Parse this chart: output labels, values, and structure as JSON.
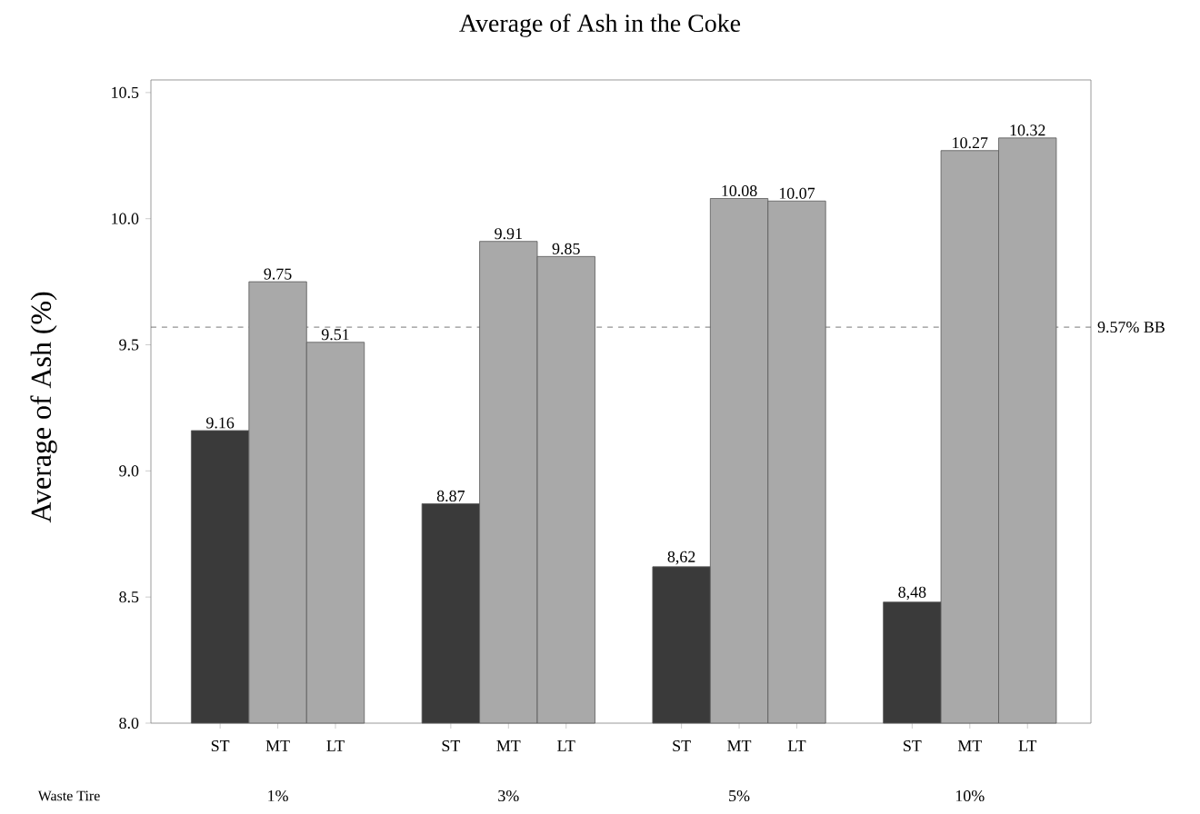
{
  "chart_data": {
    "type": "bar",
    "title": "Average of Ash in the Coke",
    "ylabel": "Average of Ash (%)",
    "categories": [
      "ST",
      "MT",
      "LT",
      null,
      "ST",
      "MT",
      "LT",
      null,
      "ST",
      "MT",
      "LT",
      null,
      "ST",
      "MT",
      "LT"
    ],
    "values": [
      9.16,
      9.75,
      9.51,
      null,
      8.87,
      9.91,
      9.85,
      null,
      8.62,
      10.08,
      10.07,
      null,
      8.48,
      10.27,
      10.32
    ],
    "colors": [
      "#3a3a3a",
      "#a9a9a9",
      "#a9a9a9",
      null,
      "#3a3a3a",
      "#a9a9a9",
      "#a9a9a9",
      null,
      "#3a3a3a",
      "#a9a9a9",
      "#a9a9a9",
      null,
      "#3a3a3a",
      "#a9a9a9",
      "#a9a9a9"
    ],
    "value_labels": [
      "9.16",
      "9.75",
      "9.51",
      null,
      "8.87",
      "9.91",
      "9.85",
      null,
      "8,62",
      "10.08",
      "10.07",
      null,
      "8,48",
      "10.27",
      "10.32"
    ],
    "ylim": [
      8,
      10.55
    ],
    "yticks": [
      {
        "value": 8,
        "label": "8.0"
      },
      {
        "value": 8.5,
        "label": "8.5"
      },
      {
        "value": 9,
        "label": "9.0"
      },
      {
        "value": 9.5,
        "label": "9.5"
      },
      {
        "value": 10,
        "label": "10.0"
      },
      {
        "value": 10.5,
        "label": "10.5"
      }
    ],
    "ref_lines": [
      {
        "axis": "y",
        "value": 9.57,
        "label": "9.57% BB",
        "line_style": "dashed",
        "color": "#555555"
      }
    ],
    "annotations": [
      "Waste Tire",
      "1%",
      "3%",
      "5%",
      "10%"
    ],
    "data_labels": false
  }
}
